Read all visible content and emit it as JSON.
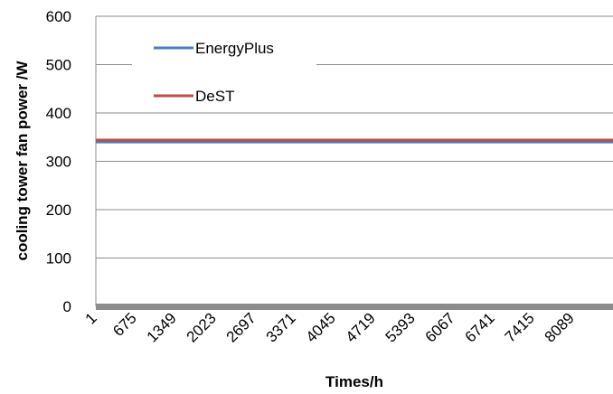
{
  "chart_data": {
    "type": "line",
    "xlabel": "Times/h",
    "ylabel": "cooling tower fan power /W",
    "ylim": [
      0,
      600
    ],
    "yticks": [
      0,
      100,
      200,
      300,
      400,
      500,
      600
    ],
    "x_ticks": [
      "1",
      "675",
      "1349",
      "2023",
      "2697",
      "3371",
      "4045",
      "4719",
      "5393",
      "6067",
      "6741",
      "7415",
      "8089"
    ],
    "xlim": [
      1,
      8760
    ],
    "grid": "horizontal",
    "legend_position": "top-left",
    "series": [
      {
        "name": "EnergyPlus",
        "color": "#4a7ebb",
        "x": [
          1,
          8760
        ],
        "values": [
          340,
          340
        ]
      },
      {
        "name": "DeST",
        "color": "#be4b48",
        "x": [
          1,
          8760
        ],
        "values": [
          344,
          344
        ]
      }
    ]
  }
}
